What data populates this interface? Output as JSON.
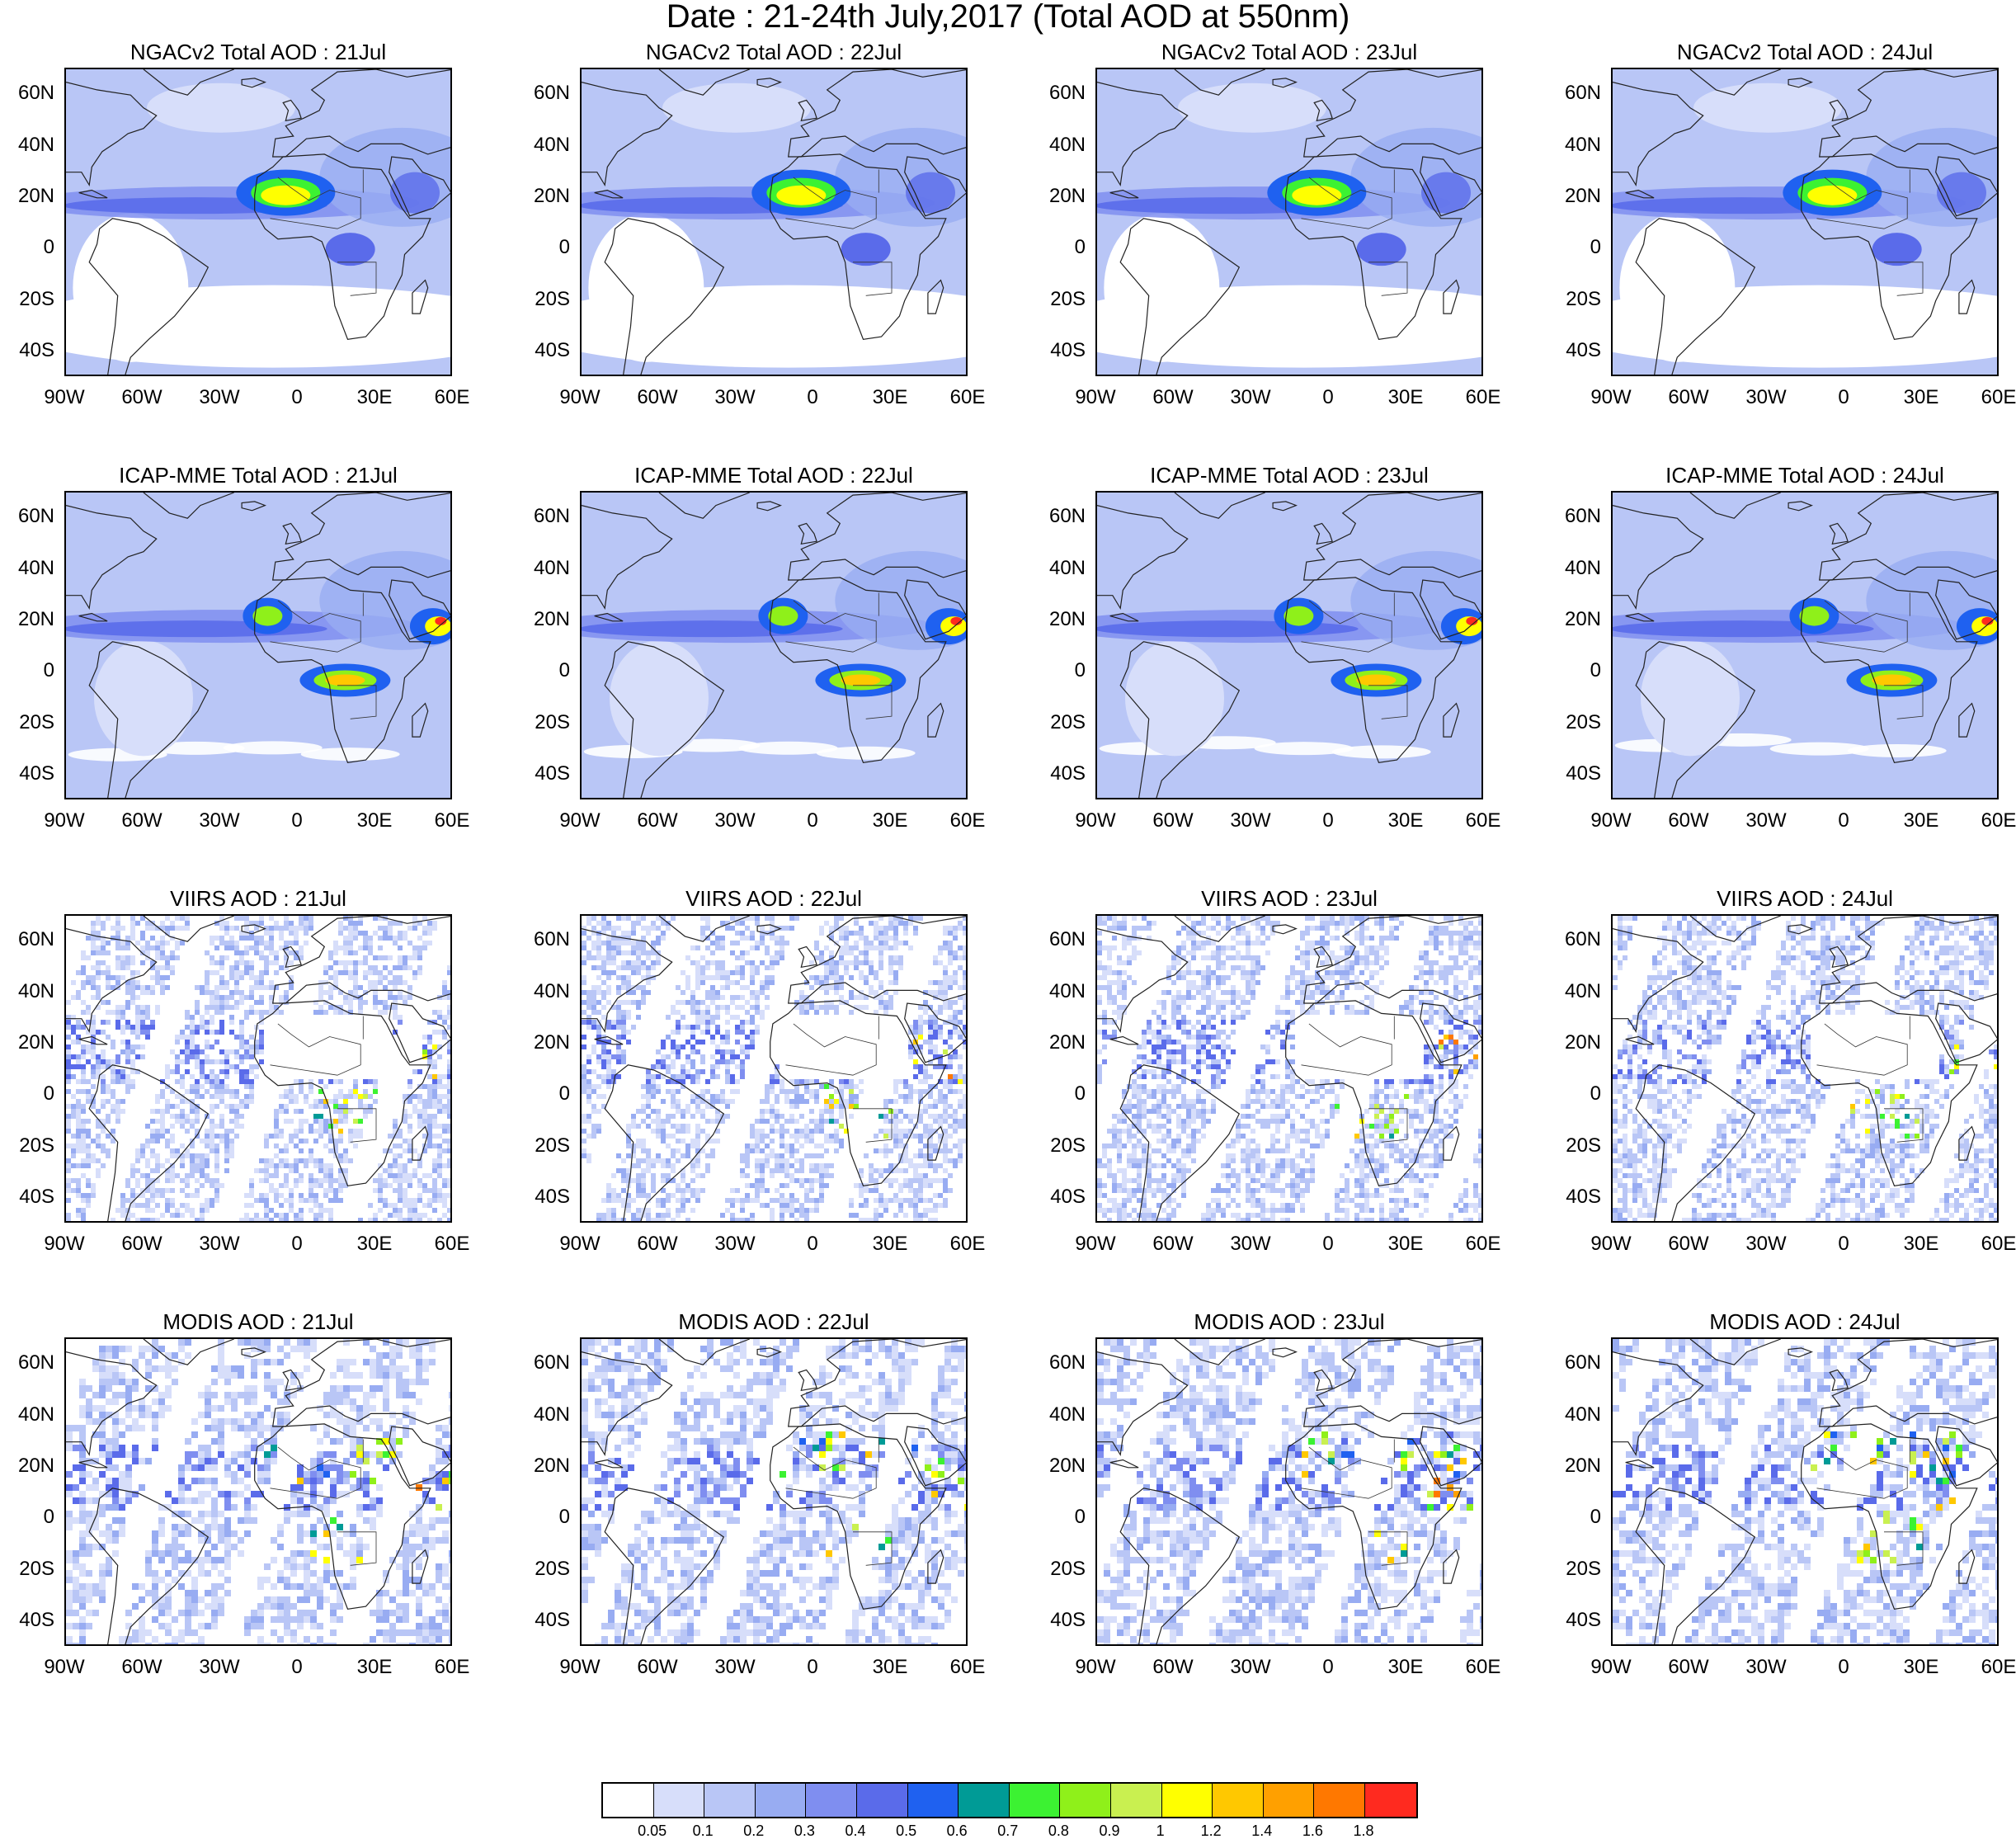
{
  "title": "Date : 21-24th July,2017 (Total AOD at 550nm)",
  "rows": [
    {
      "model": "NGACv2",
      "titles": [
        "NGACv2 Total AOD : 21Jul",
        "NGACv2 Total AOD : 22Jul",
        "NGACv2 Total AOD : 23Jul",
        "NGACv2 Total AOD : 24Jul"
      ]
    },
    {
      "model": "ICAP-MME",
      "titles": [
        "ICAP-MME Total AOD : 21Jul",
        "ICAP-MME Total AOD : 22Jul",
        "ICAP-MME Total AOD : 23Jul",
        "ICAP-MME Total AOD : 24Jul"
      ]
    },
    {
      "model": "VIIRS",
      "titles": [
        "VIIRS AOD : 21Jul",
        "VIIRS AOD : 22Jul",
        "VIIRS AOD : 23Jul",
        "VIIRS AOD : 24Jul"
      ]
    },
    {
      "model": "MODIS",
      "titles": [
        "MODIS AOD : 21Jul",
        "MODIS AOD : 22Jul",
        "MODIS AOD : 23Jul",
        "MODIS AOD : 24Jul"
      ]
    }
  ],
  "lat_ticks": [
    "60N",
    "40N",
    "20N",
    "0",
    "20S",
    "40S"
  ],
  "lon_ticks": [
    "90W",
    "60W",
    "30W",
    "0",
    "30E",
    "60E"
  ],
  "colorbar": {
    "colors": [
      "#ffffff",
      "#d7defa",
      "#b9c6f6",
      "#98acf2",
      "#7f8ef0",
      "#5a6bea",
      "#1f61f0",
      "#009b96",
      "#3cf232",
      "#8ff01a",
      "#c9f050",
      "#ffff00",
      "#ffc800",
      "#ffa000",
      "#ff7800",
      "#ff2a1f"
    ],
    "labels": [
      "0.05",
      "0.1",
      "0.2",
      "0.3",
      "0.4",
      "0.5",
      "0.6",
      "0.7",
      "0.8",
      "0.9",
      "1",
      "1.2",
      "1.4",
      "1.6",
      "1.8"
    ]
  }
}
